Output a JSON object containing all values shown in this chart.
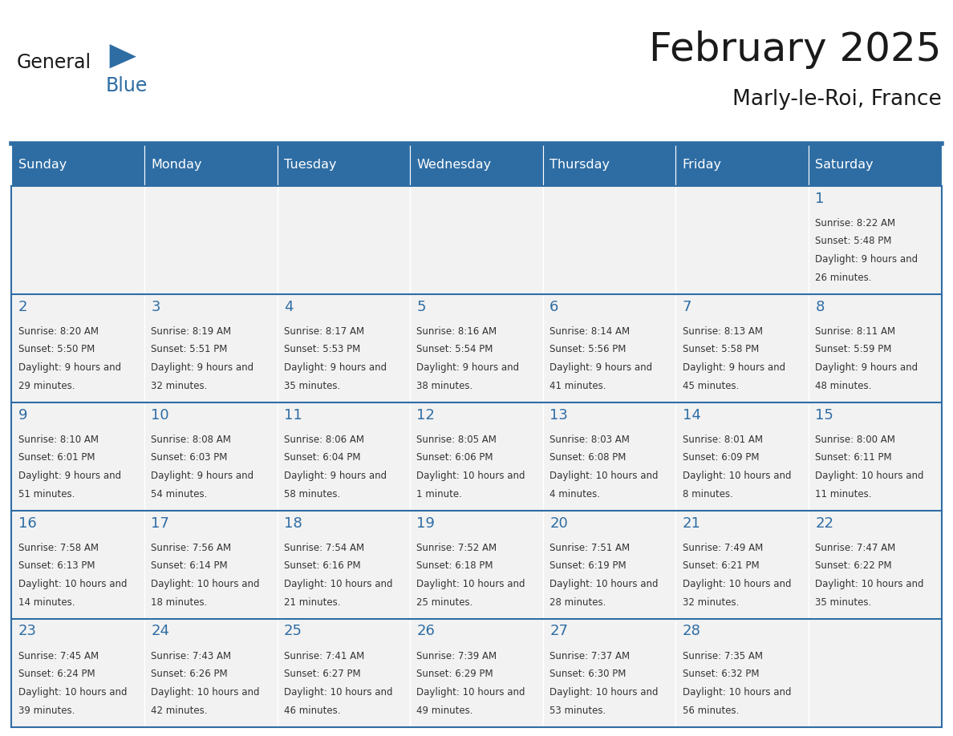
{
  "title": "February 2025",
  "subtitle": "Marly-le-Roi, France",
  "days_of_week": [
    "Sunday",
    "Monday",
    "Tuesday",
    "Wednesday",
    "Thursday",
    "Friday",
    "Saturday"
  ],
  "header_bg": "#2E6DA4",
  "header_text": "#FFFFFF",
  "cell_bg_light": "#F2F2F2",
  "border_color": "#2E6DA4",
  "text_color": "#333333",
  "day_number_color": "#2E6DA4",
  "logo_general_color": "#1a1a1a",
  "logo_blue_color": "#2E6DA4",
  "calendar": [
    [
      null,
      null,
      null,
      null,
      null,
      null,
      {
        "day": 1,
        "sunrise": "8:22 AM",
        "sunset": "5:48 PM",
        "daylight": "9 hours and 26 minutes."
      }
    ],
    [
      {
        "day": 2,
        "sunrise": "8:20 AM",
        "sunset": "5:50 PM",
        "daylight": "9 hours and 29 minutes."
      },
      {
        "day": 3,
        "sunrise": "8:19 AM",
        "sunset": "5:51 PM",
        "daylight": "9 hours and 32 minutes."
      },
      {
        "day": 4,
        "sunrise": "8:17 AM",
        "sunset": "5:53 PM",
        "daylight": "9 hours and 35 minutes."
      },
      {
        "day": 5,
        "sunrise": "8:16 AM",
        "sunset": "5:54 PM",
        "daylight": "9 hours and 38 minutes."
      },
      {
        "day": 6,
        "sunrise": "8:14 AM",
        "sunset": "5:56 PM",
        "daylight": "9 hours and 41 minutes."
      },
      {
        "day": 7,
        "sunrise": "8:13 AM",
        "sunset": "5:58 PM",
        "daylight": "9 hours and 45 minutes."
      },
      {
        "day": 8,
        "sunrise": "8:11 AM",
        "sunset": "5:59 PM",
        "daylight": "9 hours and 48 minutes."
      }
    ],
    [
      {
        "day": 9,
        "sunrise": "8:10 AM",
        "sunset": "6:01 PM",
        "daylight": "9 hours and 51 minutes."
      },
      {
        "day": 10,
        "sunrise": "8:08 AM",
        "sunset": "6:03 PM",
        "daylight": "9 hours and 54 minutes."
      },
      {
        "day": 11,
        "sunrise": "8:06 AM",
        "sunset": "6:04 PM",
        "daylight": "9 hours and 58 minutes."
      },
      {
        "day": 12,
        "sunrise": "8:05 AM",
        "sunset": "6:06 PM",
        "daylight": "10 hours and 1 minute."
      },
      {
        "day": 13,
        "sunrise": "8:03 AM",
        "sunset": "6:08 PM",
        "daylight": "10 hours and 4 minutes."
      },
      {
        "day": 14,
        "sunrise": "8:01 AM",
        "sunset": "6:09 PM",
        "daylight": "10 hours and 8 minutes."
      },
      {
        "day": 15,
        "sunrise": "8:00 AM",
        "sunset": "6:11 PM",
        "daylight": "10 hours and 11 minutes."
      }
    ],
    [
      {
        "day": 16,
        "sunrise": "7:58 AM",
        "sunset": "6:13 PM",
        "daylight": "10 hours and 14 minutes."
      },
      {
        "day": 17,
        "sunrise": "7:56 AM",
        "sunset": "6:14 PM",
        "daylight": "10 hours and 18 minutes."
      },
      {
        "day": 18,
        "sunrise": "7:54 AM",
        "sunset": "6:16 PM",
        "daylight": "10 hours and 21 minutes."
      },
      {
        "day": 19,
        "sunrise": "7:52 AM",
        "sunset": "6:18 PM",
        "daylight": "10 hours and 25 minutes."
      },
      {
        "day": 20,
        "sunrise": "7:51 AM",
        "sunset": "6:19 PM",
        "daylight": "10 hours and 28 minutes."
      },
      {
        "day": 21,
        "sunrise": "7:49 AM",
        "sunset": "6:21 PM",
        "daylight": "10 hours and 32 minutes."
      },
      {
        "day": 22,
        "sunrise": "7:47 AM",
        "sunset": "6:22 PM",
        "daylight": "10 hours and 35 minutes."
      }
    ],
    [
      {
        "day": 23,
        "sunrise": "7:45 AM",
        "sunset": "6:24 PM",
        "daylight": "10 hours and 39 minutes."
      },
      {
        "day": 24,
        "sunrise": "7:43 AM",
        "sunset": "6:26 PM",
        "daylight": "10 hours and 42 minutes."
      },
      {
        "day": 25,
        "sunrise": "7:41 AM",
        "sunset": "6:27 PM",
        "daylight": "10 hours and 46 minutes."
      },
      {
        "day": 26,
        "sunrise": "7:39 AM",
        "sunset": "6:29 PM",
        "daylight": "10 hours and 49 minutes."
      },
      {
        "day": 27,
        "sunrise": "7:37 AM",
        "sunset": "6:30 PM",
        "daylight": "10 hours and 53 minutes."
      },
      {
        "day": 28,
        "sunrise": "7:35 AM",
        "sunset": "6:32 PM",
        "daylight": "10 hours and 56 minutes."
      },
      null
    ]
  ]
}
